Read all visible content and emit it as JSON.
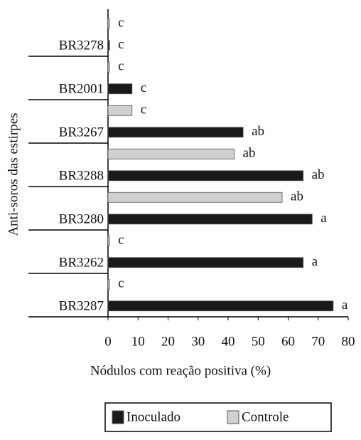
{
  "chart_data": {
    "type": "bar",
    "orientation": "horizontal",
    "xlabel": "Nódulos com reação positiva (%)",
    "ylabel": "Anti-soros das estirpes",
    "categories": [
      "BR3278",
      "BR2001",
      "BR3267",
      "BR3288",
      "BR3280",
      "BR3262",
      "BR3287"
    ],
    "series": [
      {
        "name": "Controle",
        "color": "#d0d0d0",
        "values": [
          0.5,
          0.5,
          8,
          42,
          58,
          0.5,
          0.5
        ],
        "value_labels": [
          "c",
          "c",
          "c",
          "ab",
          "ab",
          "c",
          "c"
        ]
      },
      {
        "name": "Inoculado",
        "color": "#1a1a1a",
        "values": [
          0.5,
          8,
          45,
          65,
          68,
          65,
          75
        ],
        "value_labels": [
          "c",
          "c",
          "ab",
          "ab",
          "a",
          "a",
          "a"
        ]
      }
    ],
    "xlim": [
      0,
      80
    ],
    "xticks": [
      0,
      10,
      20,
      30,
      40,
      50,
      60,
      70,
      80
    ],
    "grid": false,
    "legend": "bottom"
  }
}
